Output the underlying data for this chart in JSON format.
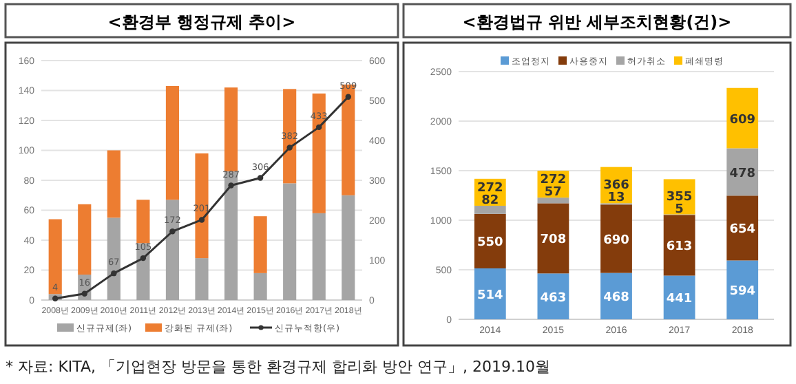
{
  "chart_data": [
    {
      "type": "bar",
      "title": "<환경부 행정규제 추이>",
      "stacked": true,
      "categories": [
        "2008년",
        "2009년",
        "2010년",
        "2011년",
        "2012년",
        "2013년",
        "2014년",
        "2015년",
        "2016년",
        "2017년",
        "2018년"
      ],
      "series": [
        {
          "name": "신규규제(좌)",
          "color": "#a5a5a5",
          "values": [
            4,
            17,
            55,
            38,
            67,
            28,
            86,
            18,
            78,
            58,
            70
          ]
        },
        {
          "name": "강화된 규제(좌)",
          "color": "#ed7d31",
          "values": [
            50,
            47,
            45,
            29,
            76,
            70,
            56,
            38,
            63,
            80,
            74
          ]
        },
        {
          "name": "신규누적항(우)",
          "type": "line",
          "axis": "y2",
          "color": "#333333",
          "marker": "circle",
          "values": [
            4,
            16,
            67,
            105,
            172,
            201,
            287,
            306,
            382,
            433,
            509
          ],
          "value_labels": [
            "4",
            "16",
            "67",
            "105",
            "172",
            "201",
            "287",
            "306",
            "382",
            "433",
            "509"
          ]
        }
      ],
      "ylim": [
        0,
        160
      ],
      "yticks": [
        0,
        20,
        40,
        60,
        80,
        100,
        120,
        140,
        160
      ],
      "y2lim": [
        0,
        600
      ],
      "y2ticks": [
        0,
        100,
        200,
        300,
        400,
        500,
        600
      ],
      "grid": "y",
      "legend": "bottom",
      "annotations": [
        "* 자료: KITA, 「기업현장 방문을 통한 환경규제 합리화 방안 연구」, 2019.10월"
      ]
    },
    {
      "type": "bar",
      "title": "<환경법규 위반 세부조치현황(건)>",
      "stacked": true,
      "categories": [
        "2014",
        "2015",
        "2016",
        "2017",
        "2018"
      ],
      "series": [
        {
          "name": "조업정지",
          "color": "#5b9bd5",
          "values": [
            514,
            463,
            468,
            441,
            594
          ]
        },
        {
          "name": "사용중지",
          "color": "#843c0c",
          "values": [
            550,
            708,
            690,
            613,
            654
          ]
        },
        {
          "name": "허가취소",
          "color": "#a5a5a5",
          "values": [
            82,
            57,
            13,
            5,
            478
          ]
        },
        {
          "name": "폐쇄명령",
          "color": "#ffc000",
          "values": [
            272,
            272,
            366,
            355,
            609
          ]
        }
      ],
      "ylim": [
        0,
        2500
      ],
      "yticks": [
        0,
        500,
        1000,
        1500,
        2000,
        2500
      ],
      "grid": "y",
      "legend": "top",
      "data_labels": true
    }
  ]
}
